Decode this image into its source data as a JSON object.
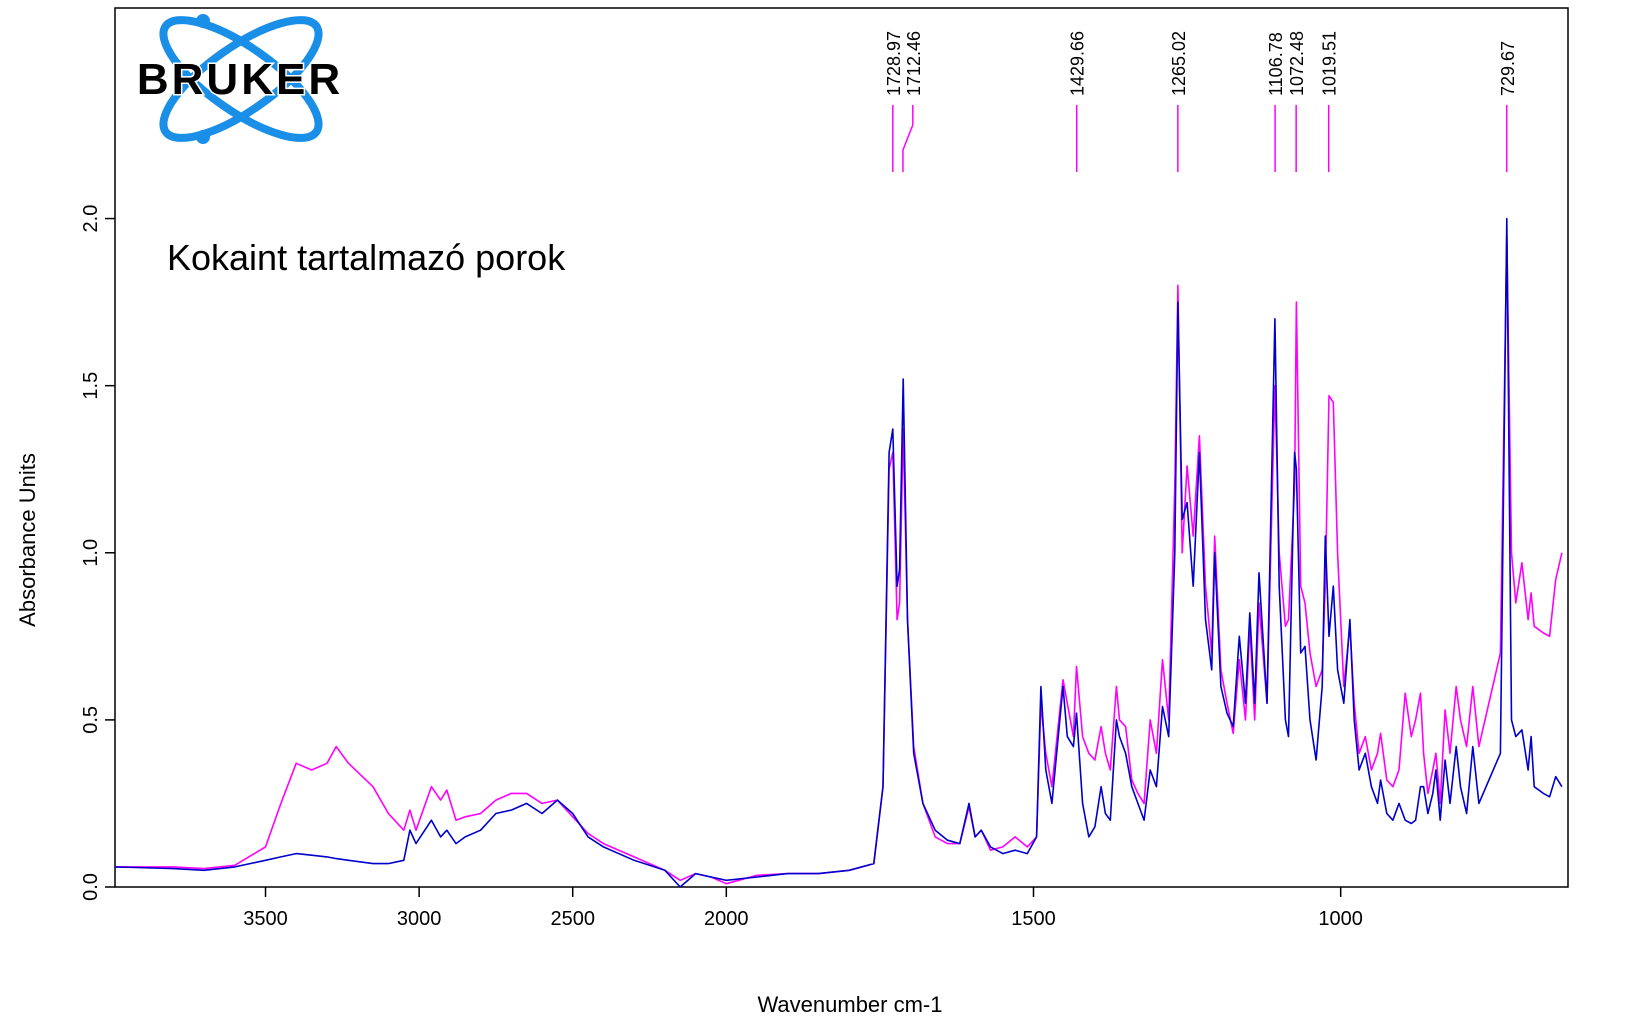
{
  "logo": "BRUKER",
  "chart_data": {
    "type": "line",
    "annotation": "Kokaint tartalmazó porok",
    "x_label": "Wavenumber cm-1",
    "y_label": "Absorbance Units",
    "xlim": [
      3990,
      630
    ],
    "x_scale_break": 2000,
    "ylim": [
      0,
      2.63
    ],
    "xticks": [
      3500,
      3000,
      2500,
      2000,
      1500,
      1000
    ],
    "yticks": [
      {
        "value": 0,
        "label": "0.0"
      },
      0.5,
      {
        "value": 1,
        "label": "1.0"
      },
      1.5,
      {
        "value": 2,
        "label": "2.0"
      }
    ],
    "peaks": [
      1728.97,
      1712.46,
      1429.66,
      1265.02,
      1106.78,
      1072.48,
      1019.51,
      729.67
    ],
    "peak_color": "#ff00ff",
    "x": [
      3990,
      3800,
      3700,
      3600,
      3500,
      3450,
      3400,
      3350,
      3300,
      3270,
      3230,
      3150,
      3100,
      3050,
      3030,
      3010,
      2960,
      2930,
      2910,
      2880,
      2850,
      2800,
      2750,
      2700,
      2650,
      2600,
      2550,
      2500,
      2450,
      2400,
      2300,
      2200,
      2150,
      2100,
      2050,
      2000,
      1950,
      1900,
      1850,
      1800,
      1760,
      1745,
      1735,
      1729,
      1722,
      1718,
      1712,
      1705,
      1695,
      1680,
      1660,
      1640,
      1620,
      1605,
      1595,
      1585,
      1570,
      1550,
      1530,
      1510,
      1495,
      1488,
      1480,
      1470,
      1452,
      1445,
      1435,
      1430,
      1420,
      1410,
      1400,
      1390,
      1383,
      1375,
      1365,
      1360,
      1350,
      1340,
      1330,
      1320,
      1310,
      1300,
      1290,
      1280,
      1270,
      1265,
      1258,
      1250,
      1240,
      1230,
      1220,
      1210,
      1205,
      1195,
      1185,
      1175,
      1165,
      1155,
      1148,
      1140,
      1133,
      1120,
      1107,
      1100,
      1090,
      1085,
      1075,
      1072,
      1065,
      1058,
      1050,
      1040,
      1030,
      1025,
      1019,
      1012,
      1005,
      995,
      985,
      978,
      970,
      960,
      950,
      940,
      935,
      925,
      915,
      905,
      895,
      885,
      878,
      870,
      865,
      858,
      850,
      845,
      838,
      830,
      822,
      812,
      805,
      795,
      785,
      775,
      740,
      729.67,
      722,
      715,
      705,
      695,
      690,
      685,
      670,
      660,
      650,
      640
    ],
    "series": [
      {
        "color": "#ff00ff",
        "values": [
          0.06,
          0.06,
          0.055,
          0.065,
          0.12,
          0.25,
          0.37,
          0.35,
          0.37,
          0.42,
          0.37,
          0.3,
          0.22,
          0.17,
          0.23,
          0.17,
          0.3,
          0.26,
          0.29,
          0.2,
          0.21,
          0.22,
          0.26,
          0.28,
          0.28,
          0.25,
          0.26,
          0.21,
          0.16,
          0.13,
          0.09,
          0.05,
          0.02,
          0.04,
          0.03,
          0.01,
          0.035,
          0.04,
          0.04,
          0.05,
          0.07,
          0.3,
          1.25,
          1.3,
          0.8,
          0.85,
          1.37,
          0.8,
          0.42,
          0.25,
          0.15,
          0.13,
          0.13,
          0.24,
          0.15,
          0.17,
          0.11,
          0.12,
          0.15,
          0.12,
          0.15,
          0.55,
          0.4,
          0.3,
          0.62,
          0.55,
          0.45,
          0.66,
          0.45,
          0.4,
          0.38,
          0.48,
          0.4,
          0.35,
          0.6,
          0.5,
          0.48,
          0.32,
          0.28,
          0.25,
          0.5,
          0.4,
          0.68,
          0.5,
          1.2,
          1.8,
          1.0,
          1.26,
          1.05,
          1.35,
          0.9,
          0.7,
          1.05,
          0.65,
          0.55,
          0.46,
          0.68,
          0.5,
          0.78,
          0.5,
          0.85,
          0.55,
          1.5,
          1.0,
          0.78,
          0.8,
          1.2,
          1.75,
          0.9,
          0.85,
          0.7,
          0.6,
          0.65,
          0.9,
          1.47,
          1.45,
          1.0,
          0.6,
          0.78,
          0.55,
          0.4,
          0.45,
          0.35,
          0.4,
          0.46,
          0.32,
          0.3,
          0.35,
          0.58,
          0.45,
          0.5,
          0.58,
          0.4,
          0.28,
          0.35,
          0.4,
          0.25,
          0.53,
          0.4,
          0.6,
          0.5,
          0.42,
          0.6,
          0.42,
          0.7,
          1.95,
          1.0,
          0.85,
          0.97,
          0.8,
          0.88,
          0.78,
          0.76,
          0.75,
          0.92,
          1.0
        ]
      },
      {
        "color": "#0000cc",
        "values": [
          0.06,
          0.055,
          0.05,
          0.06,
          0.08,
          0.09,
          0.1,
          0.095,
          0.09,
          0.085,
          0.08,
          0.07,
          0.07,
          0.08,
          0.17,
          0.13,
          0.2,
          0.15,
          0.17,
          0.13,
          0.15,
          0.17,
          0.22,
          0.23,
          0.25,
          0.22,
          0.26,
          0.22,
          0.15,
          0.12,
          0.08,
          0.05,
          0.0,
          0.04,
          0.03,
          0.02,
          0.03,
          0.04,
          0.04,
          0.05,
          0.07,
          0.3,
          1.3,
          1.37,
          0.9,
          0.95,
          1.52,
          0.8,
          0.4,
          0.25,
          0.17,
          0.14,
          0.13,
          0.25,
          0.15,
          0.17,
          0.12,
          0.1,
          0.11,
          0.1,
          0.15,
          0.6,
          0.35,
          0.25,
          0.6,
          0.45,
          0.42,
          0.52,
          0.25,
          0.15,
          0.18,
          0.3,
          0.22,
          0.2,
          0.5,
          0.45,
          0.4,
          0.3,
          0.25,
          0.2,
          0.35,
          0.3,
          0.54,
          0.45,
          1.0,
          1.75,
          1.1,
          1.15,
          0.9,
          1.3,
          0.8,
          0.65,
          1.0,
          0.6,
          0.52,
          0.48,
          0.75,
          0.55,
          0.82,
          0.55,
          0.94,
          0.55,
          1.7,
          0.9,
          0.5,
          0.45,
          1.3,
          1.25,
          0.7,
          0.72,
          0.5,
          0.38,
          0.6,
          1.05,
          0.75,
          0.9,
          0.65,
          0.55,
          0.8,
          0.5,
          0.35,
          0.4,
          0.3,
          0.25,
          0.32,
          0.22,
          0.2,
          0.25,
          0.2,
          0.19,
          0.2,
          0.3,
          0.3,
          0.22,
          0.28,
          0.35,
          0.2,
          0.38,
          0.25,
          0.42,
          0.3,
          0.22,
          0.42,
          0.25,
          0.4,
          2.0,
          0.5,
          0.45,
          0.47,
          0.35,
          0.45,
          0.3,
          0.28,
          0.27,
          0.33,
          0.3
        ]
      }
    ]
  }
}
